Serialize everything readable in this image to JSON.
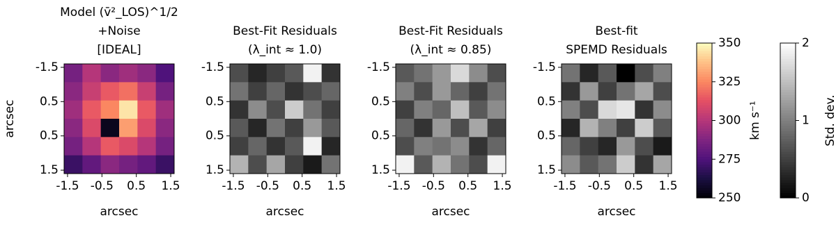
{
  "chart_data": [
    {
      "type": "heatmap",
      "title": [
        "Model (v̄²_LOS)^1/2",
        "+Noise",
        "[IDEAL]"
      ],
      "xlabel": "arcsec",
      "ylabel": "arcsec",
      "xlim": [
        -1.6,
        1.6
      ],
      "ylim": [
        -1.6,
        1.6
      ],
      "yaxis_inverted": true,
      "xticks": [
        -1.5,
        -0.5,
        0.5,
        1.5
      ],
      "yticks": [
        -1.5,
        {
          "value": -0.5,
          "label": "0.5"
        },
        0.5,
        1.5
      ],
      "cmap": "magma",
      "clim": [
        250,
        350
      ],
      "colorbar": {
        "label": "km s⁻¹",
        "ticks": [
          250,
          275,
          300,
          325,
          350
        ]
      },
      "values": [
        [
          285,
          300,
          290,
          295,
          290,
          275
        ],
        [
          290,
          305,
          315,
          320,
          305,
          285
        ],
        [
          295,
          315,
          325,
          345,
          315,
          295
        ],
        [
          290,
          310,
          255,
          330,
          310,
          290
        ],
        [
          285,
          300,
          315,
          310,
          300,
          285
        ],
        [
          270,
          280,
          290,
          285,
          280,
          270
        ]
      ]
    },
    {
      "type": "heatmap",
      "title": [
        "Best-Fit Residuals",
        "(λ_int ≈ 1.0)"
      ],
      "xlabel": "arcsec",
      "xlim": [
        -1.6,
        1.6
      ],
      "ylim": [
        -1.6,
        1.6
      ],
      "yaxis_inverted": true,
      "xticks": [
        -1.5,
        -0.5,
        0.5,
        1.5
      ],
      "yticks": [
        -1.5,
        {
          "value": -0.5,
          "label": "0.5"
        },
        0.5,
        1.5
      ],
      "cmap": "gray",
      "clim": [
        0,
        2
      ],
      "values": [
        [
          0.6,
          0.3,
          0.5,
          0.7,
          1.9,
          0.4
        ],
        [
          0.9,
          0.5,
          0.8,
          0.4,
          0.6,
          0.8
        ],
        [
          0.4,
          1.1,
          0.6,
          1.6,
          0.9,
          0.5
        ],
        [
          0.7,
          0.3,
          0.9,
          0.5,
          1.2,
          0.7
        ],
        [
          0.5,
          0.8,
          0.4,
          0.7,
          1.9,
          0.3
        ],
        [
          1.4,
          0.6,
          1.3,
          0.5,
          0.2,
          0.9
        ]
      ]
    },
    {
      "type": "heatmap",
      "title": [
        "Best-Fit Residuals",
        "(λ_int ≈ 0.85)"
      ],
      "xlabel": "arcsec",
      "xlim": [
        -1.6,
        1.6
      ],
      "ylim": [
        -1.6,
        1.6
      ],
      "yaxis_inverted": true,
      "xticks": [
        -1.5,
        -0.5,
        0.5,
        1.5
      ],
      "yticks": [
        -1.5,
        {
          "value": -0.5,
          "label": "0.5"
        },
        0.5,
        1.5
      ],
      "cmap": "gray",
      "clim": [
        0,
        2
      ],
      "values": [
        [
          0.7,
          0.9,
          1.2,
          1.7,
          1.1,
          0.6
        ],
        [
          1.0,
          0.6,
          1.2,
          0.8,
          0.5,
          0.9
        ],
        [
          0.5,
          1.0,
          0.8,
          1.5,
          0.7,
          1.1
        ],
        [
          0.8,
          0.4,
          1.2,
          0.6,
          1.3,
          0.5
        ],
        [
          0.6,
          1.0,
          0.9,
          1.1,
          0.4,
          0.8
        ],
        [
          1.9,
          0.7,
          1.4,
          0.9,
          0.6,
          1.9
        ]
      ]
    },
    {
      "type": "heatmap",
      "title": [
        "Best-fit",
        "SPEMD Residuals"
      ],
      "xlabel": "arcsec",
      "xlim": [
        -1.6,
        1.6
      ],
      "ylim": [
        -1.6,
        1.6
      ],
      "yaxis_inverted": true,
      "xticks": [
        -1.5,
        -0.5,
        0.5,
        1.5
      ],
      "yticks": [
        -1.5,
        {
          "value": -0.5,
          "label": "0.5"
        },
        0.5,
        1.5
      ],
      "cmap": "gray",
      "clim": [
        0,
        2
      ],
      "colorbar": {
        "label": "Std. dev.",
        "ticks": [
          0,
          1,
          2
        ]
      },
      "values": [
        [
          0.9,
          0.3,
          0.7,
          0.0,
          0.6,
          1.0
        ],
        [
          0.4,
          1.2,
          0.5,
          0.9,
          1.3,
          0.6
        ],
        [
          1.0,
          0.6,
          1.7,
          1.8,
          0.4,
          1.1
        ],
        [
          0.3,
          1.4,
          1.0,
          0.5,
          1.6,
          0.7
        ],
        [
          0.8,
          0.5,
          0.3,
          1.2,
          0.6,
          0.2
        ],
        [
          1.1,
          0.7,
          0.9,
          1.6,
          0.4,
          1.3
        ]
      ]
    }
  ]
}
